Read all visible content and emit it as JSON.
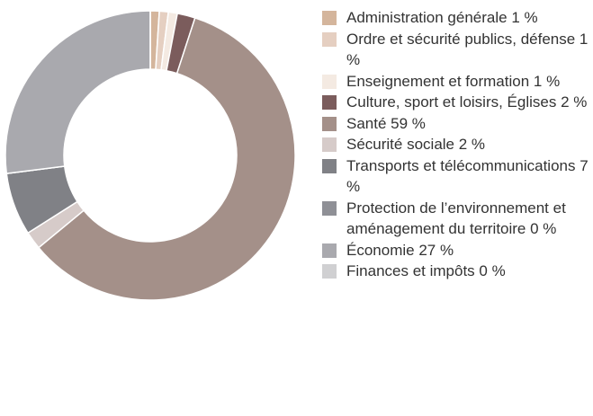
{
  "chart_data": {
    "type": "donut",
    "categories": [
      "Administration générale",
      "Ordre et sécurité publics, défense",
      "Enseignement et formation",
      "Culture, sport et loisirs, Églises",
      "Santé",
      "Sécurité sociale",
      "Transports et télécommunications",
      "Protection de l’environnement et aménagement du territoire",
      "Économie",
      "Finances et impôts"
    ],
    "values": [
      1,
      1,
      1,
      2,
      59,
      2,
      7,
      0,
      27,
      0
    ],
    "value_labels": [
      "1 %",
      "1 %",
      "1 %",
      "2 %",
      "59 %",
      "2 %",
      "7 %",
      "0 %",
      "27 %",
      "0 %"
    ],
    "colors": [
      "#d4b59c",
      "#e5cfc1",
      "#f4eae2",
      "#7b5c5c",
      "#a49089",
      "#d6cbc9",
      "#808186",
      "#8f9096",
      "#a9a9ae",
      "#d0d0d2"
    ]
  }
}
